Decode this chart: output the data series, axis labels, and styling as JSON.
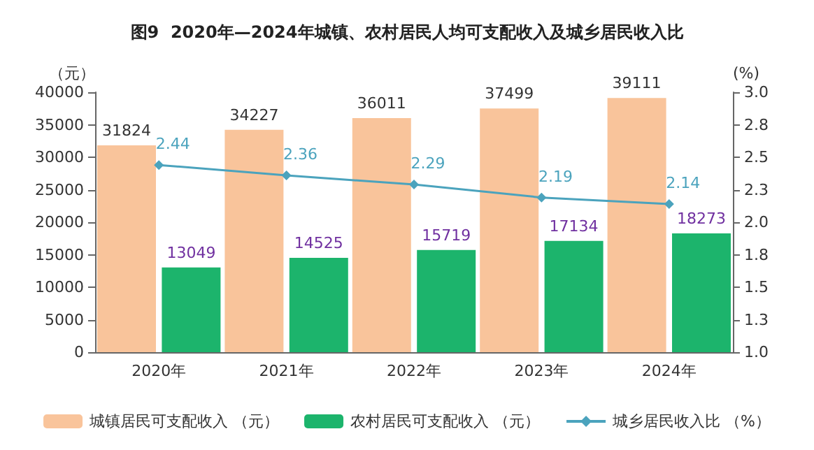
{
  "chart_data": {
    "type": "bar",
    "title": "图9  2020年—2024年城镇、农村居民人均可支配收入及城乡居民收入比",
    "ylabel": "（元）",
    "y2label": "(%)",
    "categories": [
      "2020年",
      "2021年",
      "2022年",
      "2023年",
      "2024年"
    ],
    "series": [
      {
        "name": "城镇居民可支配收入 （元）",
        "color": "#f9c49b",
        "values": [
          31824,
          34227,
          36011,
          37499,
          39111
        ]
      },
      {
        "name": "农村居民可支配收入 （元）",
        "color": "#1cb46c",
        "values": [
          13049,
          14525,
          15719,
          17134,
          18273
        ]
      },
      {
        "name": "城乡居民收入比 （%）",
        "type": "line",
        "axis": "y2",
        "color": "#4ba3bd",
        "values": [
          2.44,
          2.36,
          2.29,
          2.19,
          2.14
        ],
        "marker": "diamond"
      }
    ],
    "ylim": [
      0,
      40000
    ],
    "yticks": [
      0,
      5000,
      10000,
      15000,
      20000,
      25000,
      30000,
      35000,
      40000
    ],
    "y2lim": [
      1.0,
      3.0
    ],
    "y2ticks": [
      {
        "value": 1.0,
        "label": "1.0"
      },
      {
        "value": 1.25,
        "label": "1.3"
      },
      {
        "value": 1.5,
        "label": "1.5"
      },
      {
        "value": 1.75,
        "label": "1.8"
      },
      {
        "value": 2.0,
        "label": "2.0"
      },
      {
        "value": 2.25,
        "label": "2.3"
      },
      {
        "value": 2.5,
        "label": "2.5"
      },
      {
        "value": 2.75,
        "label": "2.8"
      },
      {
        "value": 3.0,
        "label": "3.0"
      }
    ],
    "data_labels": true,
    "grid": false,
    "legend": "bottom"
  }
}
